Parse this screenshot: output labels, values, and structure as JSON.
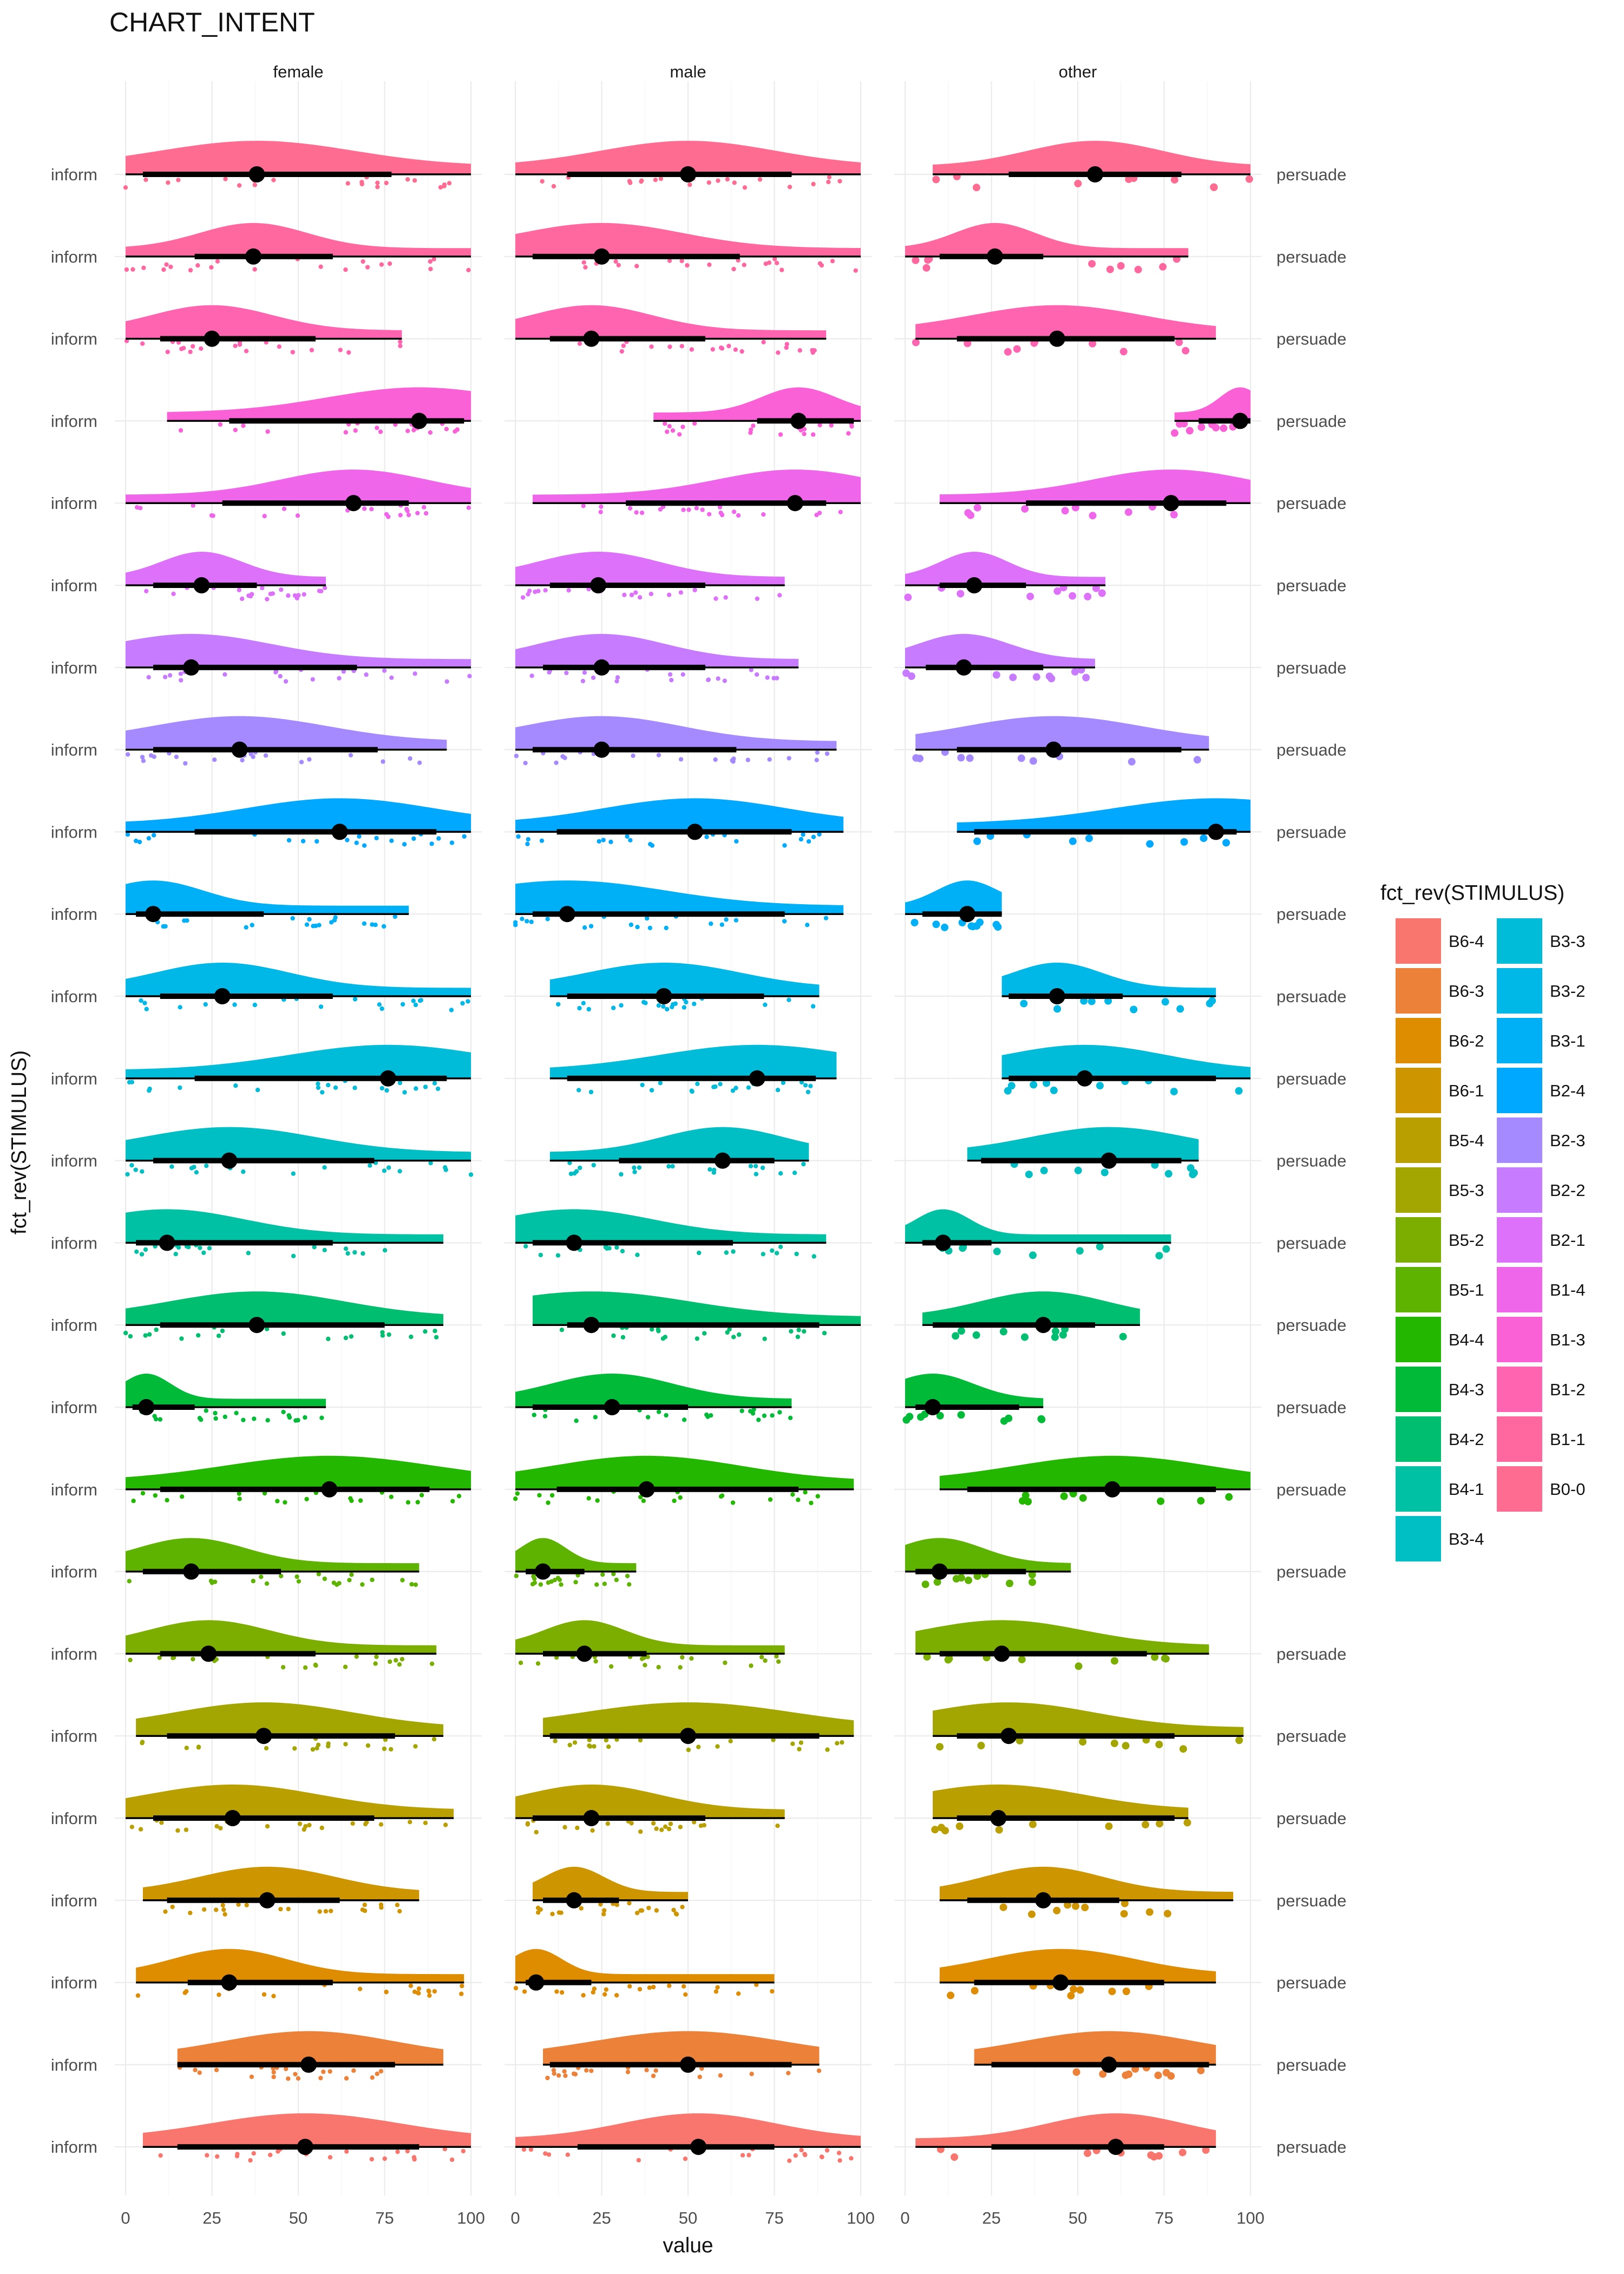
{
  "title": "CHART_INTENT",
  "chart_data": {
    "type": "raincloud",
    "title": "CHART_INTENT",
    "xlabel": "value",
    "ylabel": "fct_rev(STIMULUS)",
    "xlim": [
      0,
      100
    ],
    "x_ticks": [
      "0",
      "25",
      "50",
      "75",
      "100"
    ],
    "grid": true,
    "facets": [
      "female",
      "male",
      "other"
    ],
    "left_row_label": "inform",
    "right_row_label": "persuade",
    "legend": {
      "title": "fct_rev(STIMULUS)",
      "position": "right"
    },
    "rows": [
      {
        "stimulus": "B0-0",
        "color": "#FF6C91",
        "summary": [
          {
            "median": 38,
            "q1": 5,
            "q3": 77,
            "lo": 0,
            "hi": 100
          },
          {
            "median": 50,
            "q1": 15,
            "q3": 80,
            "lo": 0,
            "hi": 100
          },
          {
            "median": 55,
            "q1": 30,
            "q3": 80,
            "lo": 8,
            "hi": 100
          }
        ]
      },
      {
        "stimulus": "B1-1",
        "color": "#FF689F",
        "summary": [
          {
            "median": 37,
            "q1": 20,
            "q3": 60,
            "lo": 0,
            "hi": 100
          },
          {
            "median": 25,
            "q1": 5,
            "q3": 65,
            "lo": 0,
            "hi": 100
          },
          {
            "median": 26,
            "q1": 10,
            "q3": 40,
            "lo": 0,
            "hi": 82
          }
        ]
      },
      {
        "stimulus": "B1-2",
        "color": "#FF64B0",
        "summary": [
          {
            "median": 25,
            "q1": 10,
            "q3": 55,
            "lo": 0,
            "hi": 80
          },
          {
            "median": 22,
            "q1": 10,
            "q3": 55,
            "lo": 0,
            "hi": 90
          },
          {
            "median": 44,
            "q1": 15,
            "q3": 78,
            "lo": 3,
            "hi": 90
          }
        ]
      },
      {
        "stimulus": "B1-3",
        "color": "#FB61D7",
        "summary": [
          {
            "median": 85,
            "q1": 30,
            "q3": 98,
            "lo": 12,
            "hi": 100
          },
          {
            "median": 82,
            "q1": 70,
            "q3": 98,
            "lo": 40,
            "hi": 100
          },
          {
            "median": 97,
            "q1": 85,
            "q3": 100,
            "lo": 78,
            "hi": 100
          }
        ]
      },
      {
        "stimulus": "B1-4",
        "color": "#F066EA",
        "summary": [
          {
            "median": 66,
            "q1": 28,
            "q3": 82,
            "lo": 0,
            "hi": 100
          },
          {
            "median": 81,
            "q1": 32,
            "q3": 90,
            "lo": 5,
            "hi": 100
          },
          {
            "median": 77,
            "q1": 35,
            "q3": 93,
            "lo": 10,
            "hi": 100
          }
        ]
      },
      {
        "stimulus": "B2-1",
        "color": "#DE71F9",
        "summary": [
          {
            "median": 22,
            "q1": 8,
            "q3": 38,
            "lo": 0,
            "hi": 58
          },
          {
            "median": 24,
            "q1": 10,
            "q3": 55,
            "lo": 0,
            "hi": 78
          },
          {
            "median": 20,
            "q1": 10,
            "q3": 35,
            "lo": 0,
            "hi": 58
          }
        ]
      },
      {
        "stimulus": "B2-2",
        "color": "#C77CFF",
        "summary": [
          {
            "median": 19,
            "q1": 8,
            "q3": 67,
            "lo": 0,
            "hi": 100
          },
          {
            "median": 25,
            "q1": 8,
            "q3": 55,
            "lo": 0,
            "hi": 82
          },
          {
            "median": 17,
            "q1": 6,
            "q3": 40,
            "lo": 0,
            "hi": 55
          }
        ]
      },
      {
        "stimulus": "B2-3",
        "color": "#A58AFF",
        "summary": [
          {
            "median": 33,
            "q1": 8,
            "q3": 73,
            "lo": 0,
            "hi": 93
          },
          {
            "median": 25,
            "q1": 5,
            "q3": 64,
            "lo": 0,
            "hi": 93
          },
          {
            "median": 43,
            "q1": 15,
            "q3": 80,
            "lo": 3,
            "hi": 88
          }
        ]
      },
      {
        "stimulus": "B2-4",
        "color": "#00A9FF",
        "summary": [
          {
            "median": 62,
            "q1": 20,
            "q3": 90,
            "lo": 0,
            "hi": 100
          },
          {
            "median": 52,
            "q1": 12,
            "q3": 80,
            "lo": 0,
            "hi": 95
          },
          {
            "median": 90,
            "q1": 20,
            "q3": 96,
            "lo": 15,
            "hi": 100
          }
        ]
      },
      {
        "stimulus": "B3-1",
        "color": "#00B0F6",
        "summary": [
          {
            "median": 8,
            "q1": 3,
            "q3": 40,
            "lo": 0,
            "hi": 82
          },
          {
            "median": 15,
            "q1": 5,
            "q3": 78,
            "lo": 0,
            "hi": 95
          },
          {
            "median": 18,
            "q1": 5,
            "q3": 28,
            "lo": 0,
            "hi": 28
          }
        ]
      },
      {
        "stimulus": "B3-2",
        "color": "#00B8E7",
        "summary": [
          {
            "median": 28,
            "q1": 10,
            "q3": 60,
            "lo": 0,
            "hi": 100
          },
          {
            "median": 43,
            "q1": 15,
            "q3": 72,
            "lo": 10,
            "hi": 88
          },
          {
            "median": 44,
            "q1": 30,
            "q3": 63,
            "lo": 28,
            "hi": 90
          }
        ]
      },
      {
        "stimulus": "B3-3",
        "color": "#00BCD8",
        "summary": [
          {
            "median": 76,
            "q1": 20,
            "q3": 93,
            "lo": 0,
            "hi": 100
          },
          {
            "median": 70,
            "q1": 15,
            "q3": 87,
            "lo": 10,
            "hi": 93
          },
          {
            "median": 52,
            "q1": 30,
            "q3": 90,
            "lo": 28,
            "hi": 100
          }
        ]
      },
      {
        "stimulus": "B3-4",
        "color": "#00BFC4",
        "summary": [
          {
            "median": 30,
            "q1": 8,
            "q3": 72,
            "lo": 0,
            "hi": 100
          },
          {
            "median": 60,
            "q1": 30,
            "q3": 75,
            "lo": 10,
            "hi": 85
          },
          {
            "median": 59,
            "q1": 22,
            "q3": 80,
            "lo": 18,
            "hi": 85
          }
        ]
      },
      {
        "stimulus": "B4-1",
        "color": "#00C1A3",
        "summary": [
          {
            "median": 12,
            "q1": 3,
            "q3": 60,
            "lo": 0,
            "hi": 92
          },
          {
            "median": 17,
            "q1": 5,
            "q3": 63,
            "lo": 0,
            "hi": 90
          },
          {
            "median": 11,
            "q1": 5,
            "q3": 25,
            "lo": 0,
            "hi": 77
          }
        ]
      },
      {
        "stimulus": "B4-2",
        "color": "#00BE70",
        "summary": [
          {
            "median": 38,
            "q1": 10,
            "q3": 75,
            "lo": 0,
            "hi": 92
          },
          {
            "median": 22,
            "q1": 15,
            "q3": 88,
            "lo": 5,
            "hi": 100
          },
          {
            "median": 40,
            "q1": 8,
            "q3": 55,
            "lo": 5,
            "hi": 68
          }
        ]
      },
      {
        "stimulus": "B4-3",
        "color": "#00BA38",
        "summary": [
          {
            "median": 6,
            "q1": 2,
            "q3": 20,
            "lo": 0,
            "hi": 58
          },
          {
            "median": 28,
            "q1": 5,
            "q3": 50,
            "lo": 0,
            "hi": 80
          },
          {
            "median": 8,
            "q1": 3,
            "q3": 33,
            "lo": 0,
            "hi": 40
          }
        ]
      },
      {
        "stimulus": "B4-4",
        "color": "#24B700",
        "summary": [
          {
            "median": 59,
            "q1": 10,
            "q3": 88,
            "lo": 0,
            "hi": 100
          },
          {
            "median": 38,
            "q1": 12,
            "q3": 82,
            "lo": 0,
            "hi": 98
          },
          {
            "median": 60,
            "q1": 18,
            "q3": 90,
            "lo": 10,
            "hi": 100
          }
        ]
      },
      {
        "stimulus": "B5-1",
        "color": "#5EB300",
        "summary": [
          {
            "median": 19,
            "q1": 5,
            "q3": 45,
            "lo": 0,
            "hi": 85
          },
          {
            "median": 8,
            "q1": 3,
            "q3": 20,
            "lo": 0,
            "hi": 35
          },
          {
            "median": 10,
            "q1": 3,
            "q3": 35,
            "lo": 0,
            "hi": 48
          }
        ]
      },
      {
        "stimulus": "B5-2",
        "color": "#7CAE00",
        "summary": [
          {
            "median": 24,
            "q1": 10,
            "q3": 55,
            "lo": 0,
            "hi": 90
          },
          {
            "median": 20,
            "q1": 8,
            "q3": 38,
            "lo": 0,
            "hi": 78
          },
          {
            "median": 28,
            "q1": 10,
            "q3": 70,
            "lo": 3,
            "hi": 88
          }
        ]
      },
      {
        "stimulus": "B5-3",
        "color": "#A3A500",
        "summary": [
          {
            "median": 40,
            "q1": 12,
            "q3": 78,
            "lo": 3,
            "hi": 92
          },
          {
            "median": 50,
            "q1": 10,
            "q3": 88,
            "lo": 8,
            "hi": 98
          },
          {
            "median": 30,
            "q1": 15,
            "q3": 78,
            "lo": 8,
            "hi": 98
          }
        ]
      },
      {
        "stimulus": "B5-4",
        "color": "#B9A000",
        "summary": [
          {
            "median": 31,
            "q1": 8,
            "q3": 72,
            "lo": 0,
            "hi": 95
          },
          {
            "median": 22,
            "q1": 5,
            "q3": 55,
            "lo": 0,
            "hi": 78
          },
          {
            "median": 27,
            "q1": 15,
            "q3": 78,
            "lo": 8,
            "hi": 82
          }
        ]
      },
      {
        "stimulus": "B6-1",
        "color": "#CD9600",
        "summary": [
          {
            "median": 41,
            "q1": 12,
            "q3": 62,
            "lo": 5,
            "hi": 85
          },
          {
            "median": 17,
            "q1": 8,
            "q3": 30,
            "lo": 5,
            "hi": 50
          },
          {
            "median": 40,
            "q1": 18,
            "q3": 62,
            "lo": 10,
            "hi": 95
          }
        ]
      },
      {
        "stimulus": "B6-2",
        "color": "#DE8C00",
        "summary": [
          {
            "median": 30,
            "q1": 18,
            "q3": 60,
            "lo": 3,
            "hi": 98
          },
          {
            "median": 6,
            "q1": 3,
            "q3": 22,
            "lo": 0,
            "hi": 75
          },
          {
            "median": 45,
            "q1": 20,
            "q3": 75,
            "lo": 10,
            "hi": 90
          }
        ]
      },
      {
        "stimulus": "B6-3",
        "color": "#EC8239",
        "summary": [
          {
            "median": 53,
            "q1": 15,
            "q3": 78,
            "lo": 15,
            "hi": 92
          },
          {
            "median": 50,
            "q1": 10,
            "q3": 80,
            "lo": 8,
            "hi": 88
          },
          {
            "median": 59,
            "q1": 25,
            "q3": 88,
            "lo": 20,
            "hi": 90
          }
        ]
      },
      {
        "stimulus": "B6-4",
        "color": "#F8766D",
        "summary": [
          {
            "median": 52,
            "q1": 15,
            "q3": 85,
            "lo": 5,
            "hi": 100
          },
          {
            "median": 53,
            "q1": 18,
            "q3": 75,
            "lo": 0,
            "hi": 100
          },
          {
            "median": 61,
            "q1": 25,
            "q3": 75,
            "lo": 3,
            "hi": 90
          }
        ]
      }
    ]
  }
}
